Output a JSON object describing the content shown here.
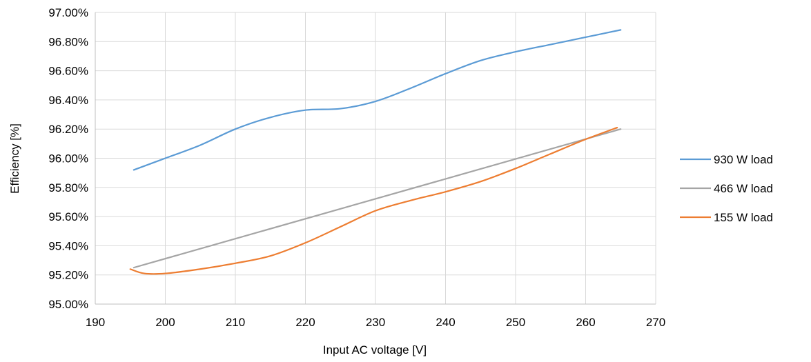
{
  "chart_data": {
    "type": "line",
    "xlabel": "Input AC voltage [V]",
    "ylabel": "Efficiency [%]",
    "xlim": [
      190,
      270
    ],
    "ylim": [
      95.0,
      97.0
    ],
    "x_ticks": [
      "190",
      "200",
      "210",
      "220",
      "230",
      "240",
      "250",
      "260",
      "270"
    ],
    "y_ticks": [
      "95.00%",
      "95.20%",
      "95.40%",
      "95.60%",
      "95.80%",
      "96.00%",
      "96.20%",
      "96.40%",
      "96.60%",
      "96.80%",
      "97.00%"
    ],
    "grid": true,
    "legend_position": "right",
    "series": [
      {
        "name": "930 W load",
        "color": "#5B9BD5",
        "points": [
          [
            195.5,
            95.92
          ],
          [
            200,
            96.0
          ],
          [
            205,
            96.09
          ],
          [
            210,
            96.2
          ],
          [
            215,
            96.28
          ],
          [
            220,
            96.33
          ],
          [
            225,
            96.34
          ],
          [
            230,
            96.39
          ],
          [
            235,
            96.48
          ],
          [
            240,
            96.58
          ],
          [
            245,
            96.67
          ],
          [
            250,
            96.73
          ],
          [
            255,
            96.78
          ],
          [
            260,
            96.83
          ],
          [
            265,
            96.88
          ]
        ]
      },
      {
        "name": "466 W load",
        "color": "#A5A5A5",
        "points": [
          [
            195.5,
            95.25
          ],
          [
            265,
            96.2
          ]
        ]
      },
      {
        "name": "155 W load",
        "color": "#ED7D31",
        "points": [
          [
            195,
            95.24
          ],
          [
            197,
            95.21
          ],
          [
            200,
            95.21
          ],
          [
            205,
            95.24
          ],
          [
            210,
            95.28
          ],
          [
            215,
            95.33
          ],
          [
            220,
            95.42
          ],
          [
            225,
            95.53
          ],
          [
            230,
            95.64
          ],
          [
            235,
            95.71
          ],
          [
            240,
            95.77
          ],
          [
            245,
            95.84
          ],
          [
            250,
            95.93
          ],
          [
            255,
            96.03
          ],
          [
            260,
            96.13
          ],
          [
            264.5,
            96.21
          ]
        ]
      }
    ]
  }
}
